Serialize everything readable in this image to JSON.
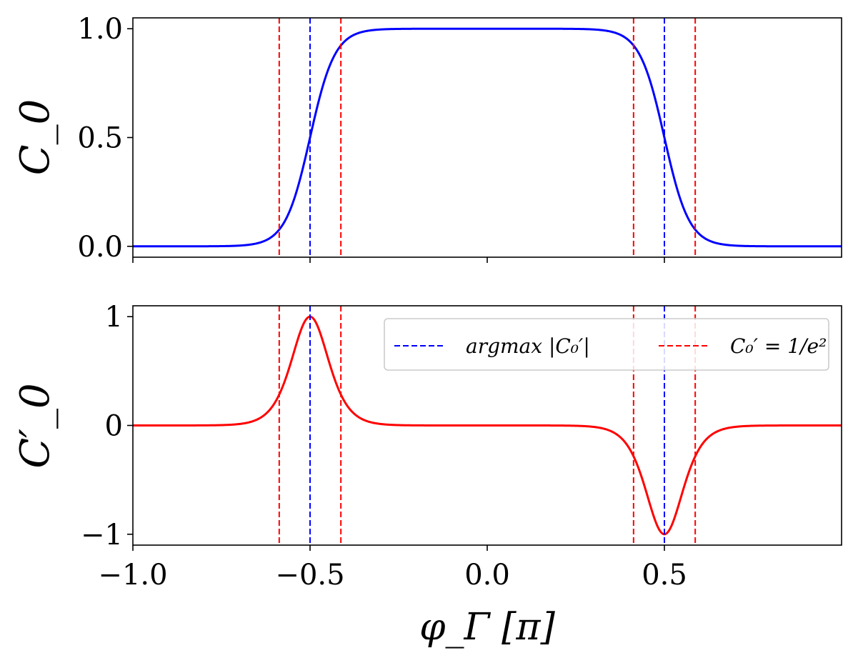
{
  "chart_data": [
    {
      "type": "line",
      "panel": "top",
      "ylabel": "C_0",
      "xlim": [
        -1.0,
        1.0
      ],
      "ylim": [
        -0.05,
        1.05
      ],
      "yticks": [
        0.0,
        0.5,
        1.0
      ],
      "ytick_labels": [
        "0.0",
        "0.5",
        "1.0"
      ],
      "xtick_labels_visible": false,
      "series": [
        {
          "color": "#0000ff",
          "function": "logistic_window",
          "center": 0.5,
          "width": 0.035,
          "peak": 1.0
        }
      ],
      "vlines": [
        {
          "x": -0.5,
          "color": "#0000ff",
          "style": "dashed"
        },
        {
          "x": 0.5,
          "color": "#0000ff",
          "style": "dashed"
        },
        {
          "x": -0.587,
          "color": "#ff0000",
          "style": "dashed"
        },
        {
          "x": -0.413,
          "color": "#ff0000",
          "style": "dashed"
        },
        {
          "x": 0.413,
          "color": "#ff0000",
          "style": "dashed"
        },
        {
          "x": 0.587,
          "color": "#ff0000",
          "style": "dashed"
        }
      ]
    },
    {
      "type": "line",
      "panel": "bottom",
      "ylabel": "C′_0",
      "xlabel": "φ_Γ [π]",
      "xlim": [
        -1.0,
        1.0
      ],
      "ylim": [
        -1.1,
        1.1
      ],
      "xticks": [
        -1.0,
        -0.5,
        0.0,
        0.5
      ],
      "xtick_labels": [
        "−1.0",
        "−0.5",
        "0.0",
        "0.5"
      ],
      "yticks": [
        -1,
        0,
        1
      ],
      "ytick_labels": [
        "−1",
        "0",
        "1"
      ],
      "series": [
        {
          "color": "#ff0000",
          "function": "normalized_derivative",
          "center": 0.5,
          "width": 0.035,
          "peak": 1.0
        }
      ],
      "vlines": [
        {
          "x": -0.5,
          "color": "#0000ff",
          "style": "dashed"
        },
        {
          "x": 0.5,
          "color": "#0000ff",
          "style": "dashed"
        },
        {
          "x": -0.587,
          "color": "#ff0000",
          "style": "dashed"
        },
        {
          "x": -0.413,
          "color": "#ff0000",
          "style": "dashed"
        },
        {
          "x": 0.413,
          "color": "#ff0000",
          "style": "dashed"
        },
        {
          "x": 0.587,
          "color": "#ff0000",
          "style": "dashed"
        }
      ],
      "legend": {
        "placement": "top-right",
        "entries": [
          {
            "label": "argmax |C₀′|",
            "color": "#0000ff",
            "style": "dashed"
          },
          {
            "label": "C₀′ = 1/e²",
            "color": "#ff0000",
            "style": "dashed"
          }
        ]
      }
    }
  ]
}
